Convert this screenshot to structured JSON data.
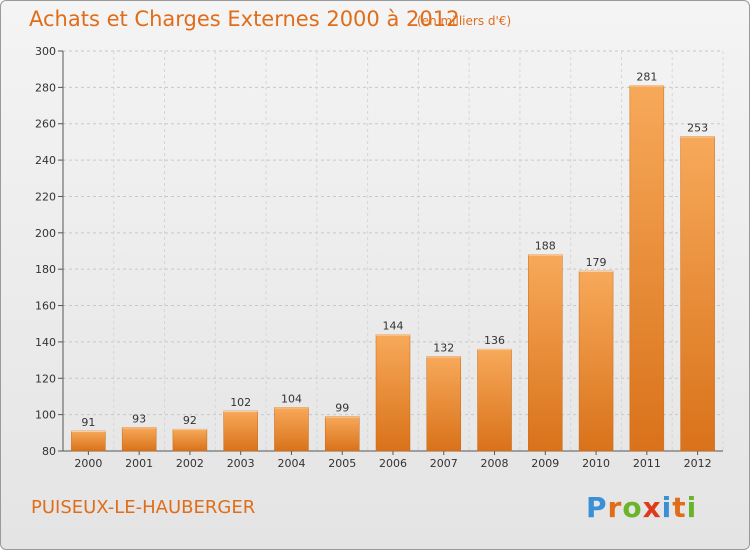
{
  "header": {
    "title": "Achats et Charges Externes 2000 à 2012",
    "unit_note": "(en milliers d'€)"
  },
  "footer": {
    "commune": "PUISEUX-LE-HAUBERGER",
    "logo_text": "Proxiti"
  },
  "colors": {
    "accent": "#e06d1a",
    "bar_light": "#f7a95a",
    "bar_dark": "#d9721a",
    "logo_letters": [
      "#3a8fd6",
      "#e06d1a",
      "#69b42a",
      "#e03a1a",
      "#3a8fd6",
      "#e06d1a",
      "#69b42a"
    ]
  },
  "chart_data": {
    "type": "bar",
    "title": "Achats et Charges Externes 2000 à 2012",
    "subtitle": "(en milliers d'€)",
    "categories": [
      "2000",
      "2001",
      "2002",
      "2003",
      "2004",
      "2005",
      "2006",
      "2007",
      "2008",
      "2009",
      "2010",
      "2011",
      "2012"
    ],
    "values": [
      91,
      93,
      92,
      102,
      104,
      99,
      144,
      132,
      136,
      188,
      179,
      281,
      253
    ],
    "ylim": [
      80,
      300
    ],
    "yticks": [
      80,
      100,
      120,
      140,
      160,
      180,
      200,
      220,
      240,
      260,
      280,
      300
    ],
    "grid": true,
    "legend": "none"
  }
}
